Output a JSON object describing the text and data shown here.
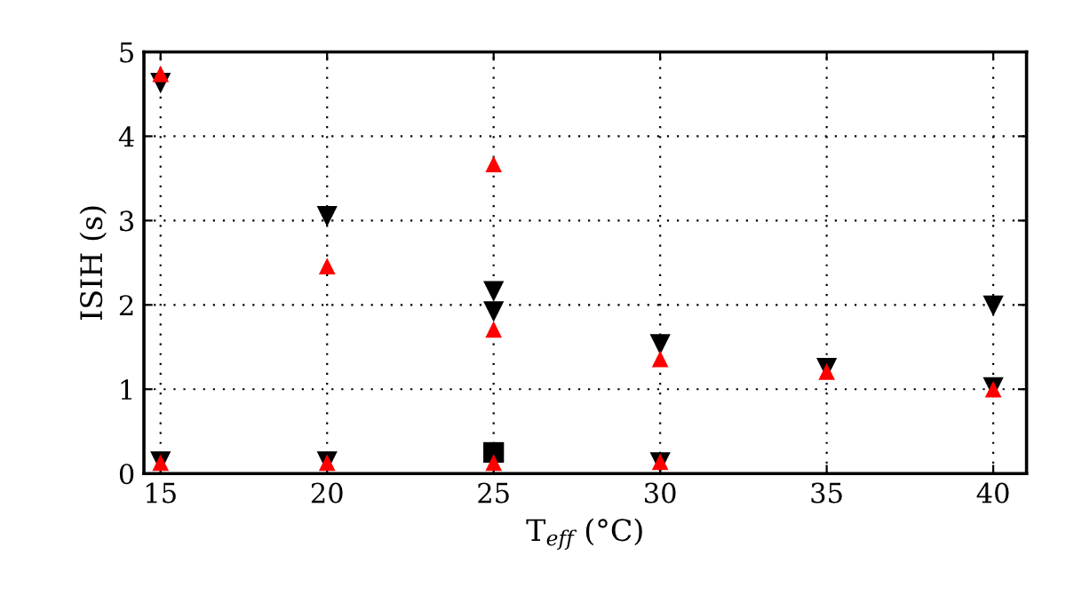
{
  "chart_data": {
    "type": "scatter",
    "xlabel": "T$_{eff}$ (°C)",
    "ylabel": "ISIH (s)",
    "xlim": [
      14.5,
      41
    ],
    "ylim": [
      0,
      5
    ],
    "xticks": [
      15,
      20,
      25,
      30,
      35,
      40
    ],
    "yticks": [
      0,
      1,
      2,
      3,
      4,
      5
    ],
    "grid": true,
    "series": [
      {
        "color": "#000000",
        "marker": "triangle_down",
        "x": [
          15,
          20,
          25,
          25,
          30,
          35,
          40,
          40,
          15,
          20,
          30
        ],
        "values": [
          4.63,
          3.05,
          2.16,
          1.92,
          1.53,
          1.25,
          1.99,
          1.02,
          0.14,
          0.14,
          0.13
        ]
      },
      {
        "color": "#000000",
        "marker": "square",
        "x": [
          25
        ],
        "values": [
          0.25
        ]
      },
      {
        "color": "#ff0000",
        "marker": "triangle",
        "x": [
          15,
          20,
          25,
          25,
          30,
          35,
          40,
          15,
          20,
          25,
          30
        ],
        "values": [
          4.74,
          2.46,
          3.67,
          1.71,
          1.36,
          1.21,
          1.0,
          0.13,
          0.13,
          0.13,
          0.14
        ]
      }
    ]
  }
}
